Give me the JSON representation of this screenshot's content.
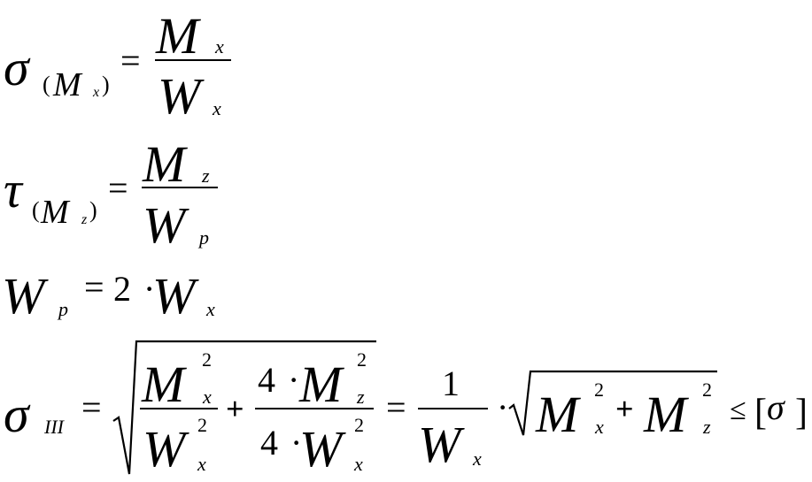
{
  "formulas": {
    "f1": {
      "lhs": "σ",
      "sub_open": "(",
      "sub_M": "M",
      "sub_x": "x",
      "sub_close": ")",
      "eq": "=",
      "num_M": "M",
      "num_x": "x",
      "den_W": "W",
      "den_x": "x"
    },
    "f2": {
      "lhs": "τ",
      "sub_open": "(",
      "sub_M": "M",
      "sub_z": "z",
      "sub_close": ")",
      "eq": "=",
      "num_M": "M",
      "num_z": "z",
      "den_W": "W",
      "den_p": "p"
    },
    "f3": {
      "W": "W",
      "p": "p",
      "eq": "=",
      "two": "2",
      "dot": "·",
      "W2": "W",
      "x": "x"
    },
    "f4": {
      "lhs": "σ",
      "sub": "III",
      "eq": "=",
      "a_num_M": "M",
      "a_num_sup": "2",
      "a_num_sub": "x",
      "a_den_W": "W",
      "a_den_sup": "2",
      "a_den_sub": "x",
      "plus": "+",
      "b_num_4": "4",
      "b_num_dot": "·",
      "b_num_M": "M",
      "b_num_sup": "2",
      "b_num_sub": "z",
      "b_den_4": "4",
      "b_den_dot": "·",
      "b_den_W": "W",
      "b_den_sup": "2",
      "b_den_sub": "x",
      "eq2": "=",
      "c_num": "1",
      "c_den_W": "W",
      "c_den_x": "x",
      "dot2": "·",
      "r_M1": "M",
      "r_sup1": "2",
      "r_sub1": "x",
      "r_plus": "+",
      "r_M2": "M",
      "r_sup2": "2",
      "r_sub2": "z",
      "leq": "≤",
      "lbracket": "[",
      "sigma": "σ",
      "rbracket": "]"
    }
  }
}
